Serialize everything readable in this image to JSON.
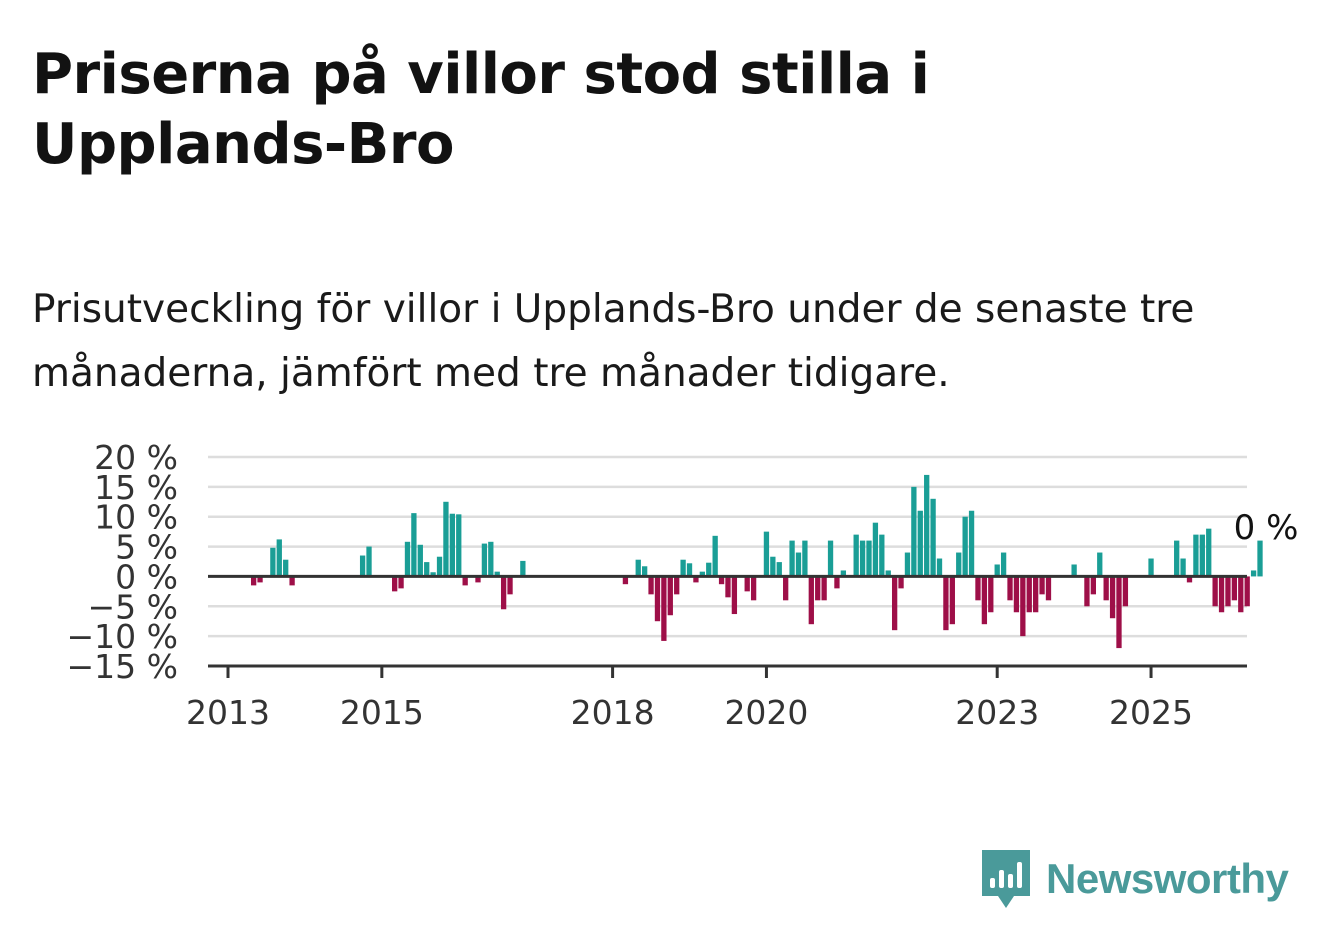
{
  "header": {
    "title": "Priserna på villor stod stilla i Upplands-Bro",
    "subtitle": "Prisutveckling för villor i Upplands-Bro under de senaste tre månaderna, jämfört med tre månader tidigare."
  },
  "brand": {
    "name": "Newsworthy",
    "icon": "newsworthy-logo-icon",
    "color": "#4a9a9a"
  },
  "colors": {
    "positive": "#1a9e96",
    "negative": "#9e0f48",
    "grid": "#dddddd",
    "axis": "#333333"
  },
  "chart_data": {
    "type": "bar",
    "title": "",
    "xlabel": "",
    "ylabel": "",
    "ylim": [
      -15,
      20
    ],
    "yticks": [
      "20 %",
      "15 %",
      "10 %",
      "5 %",
      "0 %",
      "−5 %",
      "−10 %",
      "−15 %"
    ],
    "ytick_values": [
      20,
      15,
      10,
      5,
      0,
      -5,
      -10,
      -15
    ],
    "xticks": [
      "2013",
      "2015",
      "2018",
      "2020",
      "2023",
      "2025"
    ],
    "grid": true,
    "annotation": "0 %",
    "start": "2013-01",
    "values": [
      0,
      0,
      0,
      0,
      -1.5,
      -1,
      0,
      4.8,
      6.2,
      2.8,
      -1.5,
      0,
      0,
      0,
      0,
      0,
      0,
      0,
      0,
      0,
      0,
      3.5,
      5,
      0,
      0,
      0,
      -2.5,
      -2,
      5.8,
      10.6,
      5.3,
      2.4,
      0.7,
      3.3,
      12.5,
      10.5,
      10.4,
      -1.5,
      0,
      -1,
      5.5,
      5.8,
      0.8,
      -5.5,
      -3,
      0,
      2.6,
      0,
      0,
      0,
      0,
      0,
      0,
      0,
      0,
      0,
      0,
      0,
      0,
      0,
      0,
      0,
      -1.3,
      0,
      2.8,
      1.7,
      -3,
      -7.5,
      -10.8,
      -6.5,
      -3,
      2.8,
      2.2,
      -1,
      0.8,
      2.3,
      6.8,
      -1.3,
      -3.5,
      -6.3,
      0,
      -2.5,
      -4,
      0,
      7.5,
      3.3,
      2.4,
      -4,
      6,
      4,
      6,
      -8,
      -4,
      -4,
      6,
      -2,
      1,
      0,
      7,
      6,
      6,
      9,
      7,
      1,
      -9,
      -2,
      4,
      15,
      11,
      17,
      13,
      3,
      -9,
      -8,
      4,
      10,
      11,
      -4,
      -8,
      -6,
      2,
      4,
      -4,
      -6,
      -10,
      -6,
      -6,
      -3,
      -4,
      0,
      0,
      0,
      2,
      0,
      -5,
      -3,
      4,
      -4,
      -7,
      -12,
      -5,
      0,
      0,
      0,
      3,
      0,
      0,
      0,
      6,
      3,
      -1,
      7,
      7,
      8,
      -5,
      -6,
      -5,
      -4,
      -6,
      -5,
      1,
      6
    ]
  }
}
